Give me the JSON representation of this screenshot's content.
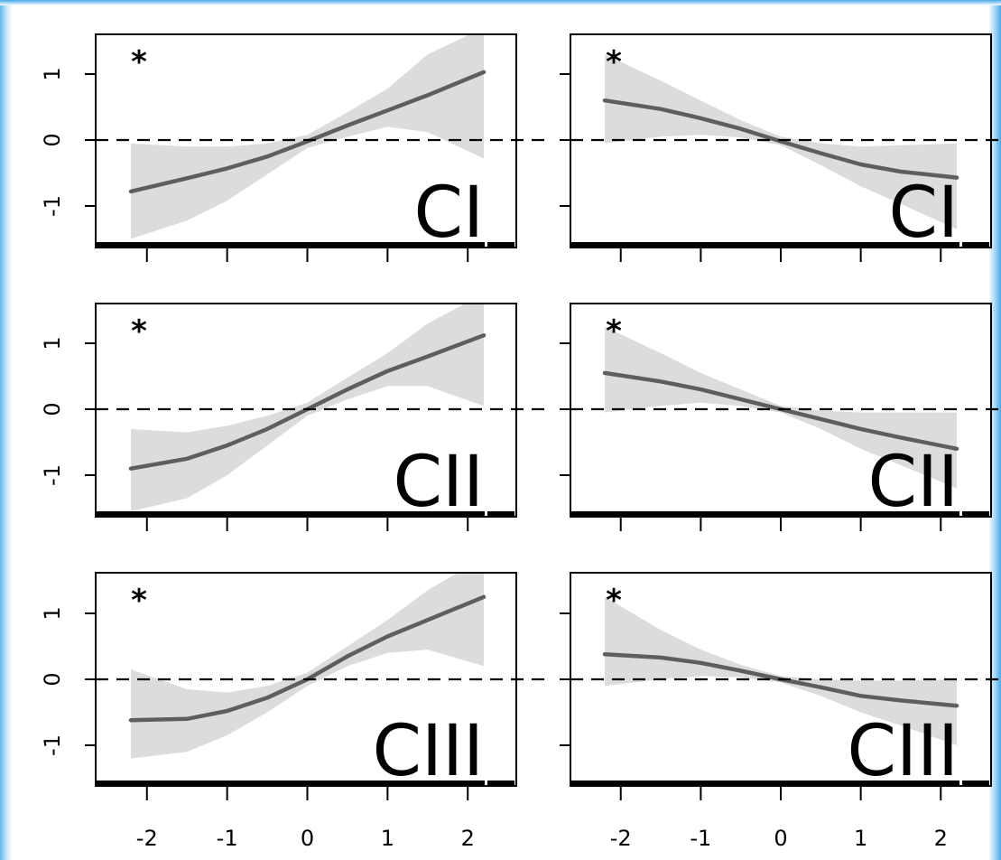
{
  "chart_data": [
    {
      "type": "line",
      "label": "CI",
      "significance": "*",
      "row": 1,
      "col": 1,
      "x": [
        -2.2,
        -1.5,
        -1.0,
        -0.5,
        0.0,
        0.5,
        1.0,
        1.5,
        2.2
      ],
      "y": [
        -0.78,
        -0.58,
        -0.43,
        -0.25,
        -0.02,
        0.22,
        0.45,
        0.68,
        1.03
      ],
      "lower": [
        -1.5,
        -1.22,
        -0.92,
        -0.52,
        -0.12,
        0.05,
        0.2,
        0.12,
        -0.28
      ],
      "upper": [
        -0.05,
        -0.1,
        -0.1,
        -0.05,
        0.08,
        0.42,
        0.78,
        1.3,
        1.7
      ],
      "ylim": [
        -1.55,
        1.55
      ],
      "xlim": [
        -2.4,
        2.4
      ]
    },
    {
      "type": "line",
      "label": "CI",
      "significance": "*",
      "row": 1,
      "col": 2,
      "x": [
        -2.2,
        -1.5,
        -1.0,
        -0.5,
        0.0,
        0.5,
        1.0,
        1.5,
        2.2
      ],
      "y": [
        0.6,
        0.47,
        0.33,
        0.17,
        -0.02,
        -0.2,
        -0.37,
        -0.48,
        -0.57
      ],
      "lower": [
        -0.05,
        0.05,
        0.08,
        0.04,
        -0.08,
        -0.38,
        -0.7,
        -0.97,
        -1.35
      ],
      "upper": [
        1.3,
        0.9,
        0.6,
        0.3,
        0.05,
        -0.05,
        -0.1,
        -0.08,
        -0.05
      ],
      "ylim": [
        -1.55,
        1.55
      ],
      "xlim": [
        -2.4,
        2.4
      ]
    },
    {
      "type": "line",
      "label": "CII",
      "significance": "*",
      "row": 2,
      "col": 1,
      "x": [
        -2.2,
        -1.5,
        -1.0,
        -0.5,
        0.0,
        0.5,
        1.0,
        1.5,
        2.2
      ],
      "y": [
        -0.9,
        -0.75,
        -0.55,
        -0.3,
        0.0,
        0.3,
        0.58,
        0.8,
        1.12
      ],
      "lower": [
        -1.55,
        -1.35,
        -1.0,
        -0.55,
        -0.1,
        0.15,
        0.35,
        0.35,
        0.05
      ],
      "upper": [
        -0.3,
        -0.35,
        -0.25,
        -0.1,
        0.1,
        0.48,
        0.85,
        1.3,
        1.75
      ],
      "ylim": [
        -1.55,
        1.55
      ],
      "xlim": [
        -2.4,
        2.4
      ]
    },
    {
      "type": "line",
      "label": "CII",
      "significance": "*",
      "row": 2,
      "col": 2,
      "x": [
        -2.2,
        -1.5,
        -1.0,
        -0.5,
        0.0,
        0.5,
        1.0,
        1.5,
        2.2
      ],
      "y": [
        0.55,
        0.42,
        0.3,
        0.15,
        0.0,
        -0.15,
        -0.3,
        -0.43,
        -0.6
      ],
      "lower": [
        -0.05,
        0.05,
        0.1,
        0.05,
        -0.05,
        -0.3,
        -0.6,
        -0.85,
        -1.2
      ],
      "upper": [
        1.25,
        0.85,
        0.55,
        0.3,
        0.05,
        -0.02,
        -0.05,
        -0.05,
        -0.05
      ],
      "ylim": [
        -1.55,
        1.55
      ],
      "xlim": [
        -2.4,
        2.4
      ]
    },
    {
      "type": "line",
      "label": "CIII",
      "significance": "*",
      "row": 3,
      "col": 1,
      "x": [
        -2.2,
        -1.5,
        -1.0,
        -0.5,
        0.0,
        0.5,
        1.0,
        1.5,
        2.2
      ],
      "y": [
        -0.62,
        -0.6,
        -0.48,
        -0.28,
        0.0,
        0.35,
        0.65,
        0.9,
        1.25
      ],
      "lower": [
        -1.2,
        -1.1,
        -0.85,
        -0.5,
        -0.1,
        0.2,
        0.4,
        0.45,
        0.2
      ],
      "upper": [
        0.15,
        -0.15,
        -0.2,
        -0.1,
        0.1,
        0.5,
        0.9,
        1.35,
        1.85
      ],
      "ylim": [
        -1.55,
        1.55
      ],
      "xlim": [
        -2.4,
        2.4
      ]
    },
    {
      "type": "line",
      "label": "CIII",
      "significance": "*",
      "row": 3,
      "col": 2,
      "x": [
        -2.2,
        -1.5,
        -1.0,
        -0.5,
        0.0,
        0.5,
        1.0,
        1.5,
        2.2
      ],
      "y": [
        0.38,
        0.33,
        0.25,
        0.13,
        0.0,
        -0.12,
        -0.25,
        -0.32,
        -0.4
      ],
      "lower": [
        -0.1,
        0.0,
        0.05,
        0.03,
        -0.05,
        -0.25,
        -0.5,
        -0.7,
        -1.0
      ],
      "upper": [
        1.25,
        0.75,
        0.45,
        0.22,
        0.05,
        0.0,
        -0.02,
        -0.02,
        0.0
      ],
      "ylim": [
        -1.55,
        1.55
      ],
      "xlim": [
        -2.4,
        2.4
      ]
    }
  ],
  "axes": {
    "x_ticks": [
      -2,
      -1,
      0,
      1,
      2
    ],
    "x_tick_labels": [
      "-2",
      "-1",
      "0",
      "1",
      "2"
    ],
    "y_ticks": [
      -1,
      0,
      1
    ],
    "y_tick_labels": [
      "-1",
      "0",
      "1"
    ]
  },
  "colors": {
    "band": "#dcdcdc",
    "line": "#5e5e5e",
    "reference": "#000000",
    "frame": "#000000"
  }
}
